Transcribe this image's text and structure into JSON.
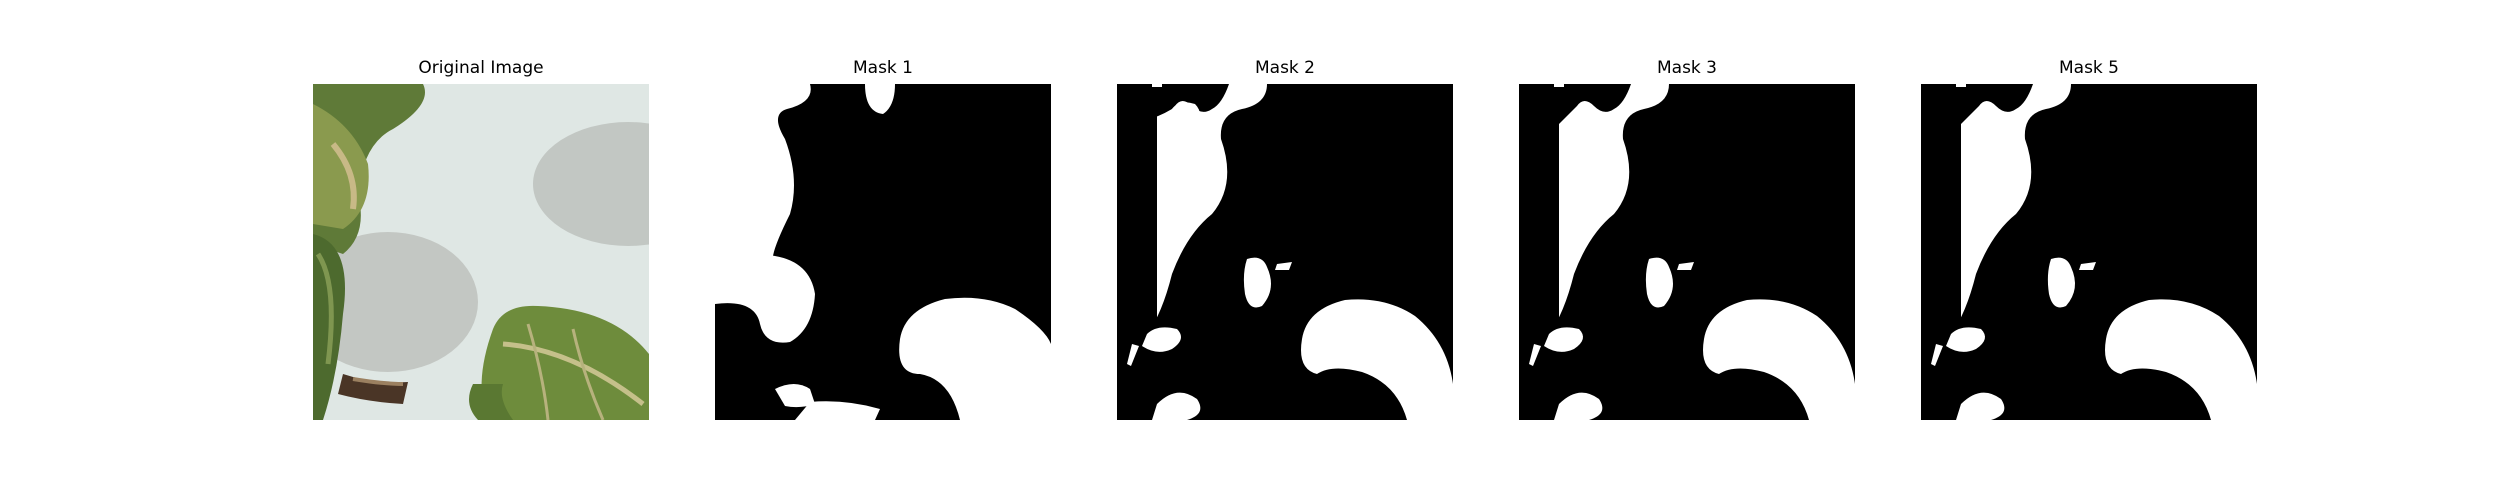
{
  "panels": [
    {
      "title": "Original Image"
    },
    {
      "title": "Mask 1"
    },
    {
      "title": "Mask 2"
    },
    {
      "title": "Mask 3"
    },
    {
      "title": "Mask 5"
    }
  ],
  "colors": {
    "background": "#ffffff",
    "mask_background": "#000000",
    "mask_foreground": "#ffffff",
    "leaf_dark": "#3f5a2a",
    "leaf_mid": "#7c8f45",
    "leaf_yellow": "#b8a865",
    "wall": "#d8e0dc",
    "ellipse_shadow": "#bfc4c0"
  }
}
